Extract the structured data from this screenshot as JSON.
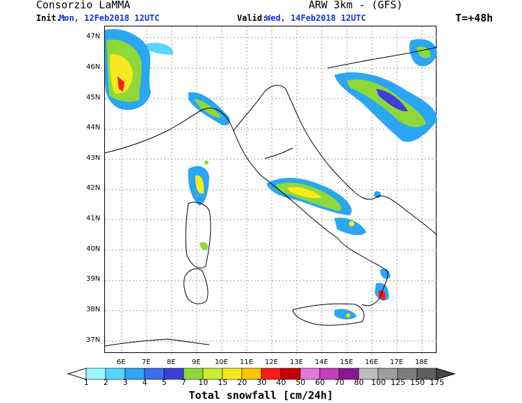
{
  "header": {
    "org": "Consorzio LaMMA",
    "model": "ARW 3km - (GFS)",
    "init_label": "Init.:",
    "init_value": "Mon, 12Feb2018 12UTC",
    "valid_label": "Valid:",
    "valid_value": "Wed, 14Feb2018 12UTC",
    "lead": "T=+48h"
  },
  "map": {
    "lat_labels": [
      "47N",
      "46N",
      "45N",
      "44N",
      "43N",
      "42N",
      "41N",
      "40N",
      "39N",
      "38N",
      "37N"
    ],
    "lon_labels": [
      "6E",
      "7E",
      "8E",
      "9E",
      "10E",
      "11E",
      "12E",
      "13E",
      "14E",
      "15E",
      "16E",
      "17E",
      "18E"
    ]
  },
  "colorbar": {
    "title": "Total snowfall [cm/24h]",
    "labels": [
      "1",
      "2",
      "3",
      "4",
      "5",
      "7",
      "10",
      "15",
      "20",
      "30",
      "40",
      "50",
      "60",
      "70",
      "80",
      "100",
      "125",
      "150",
      "175"
    ],
    "colors": [
      "#9ef7ff",
      "#55d5ff",
      "#2aa6f2",
      "#3f6df0",
      "#3b3fd8",
      "#8fd83a",
      "#c8ec2e",
      "#f5ea1e",
      "#ffc40a",
      "#ff1a1a",
      "#c40000",
      "#e07ad8",
      "#c53db8",
      "#8a1a90",
      "#bdbdbd",
      "#9e9e9e",
      "#7d7d7d",
      "#5e5e5e"
    ],
    "end_left": "#ffffff",
    "end_right": "#444444"
  }
}
